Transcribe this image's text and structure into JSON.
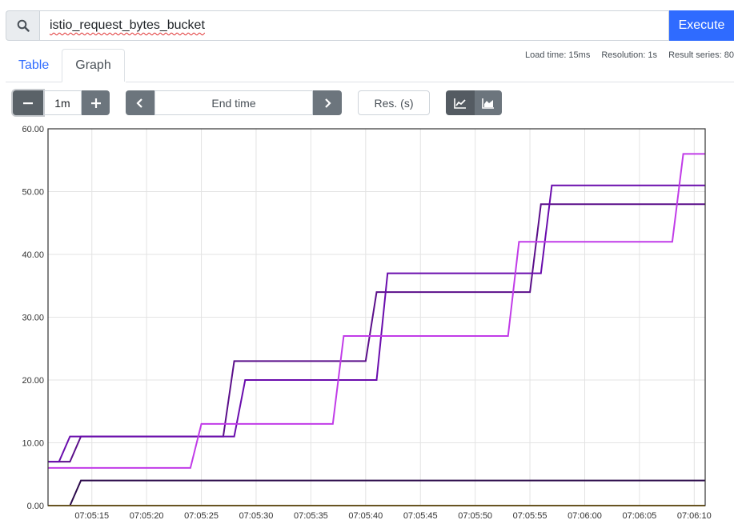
{
  "query": {
    "value": "istio_request_bytes_bucket",
    "search_icon": "search-icon",
    "execute_label": "Execute"
  },
  "tabs": [
    {
      "label": "Table",
      "active": false
    },
    {
      "label": "Graph",
      "active": true
    }
  ],
  "stats": {
    "load_time": "Load time: 15ms",
    "resolution": "Resolution: 1s",
    "result_series": "Result series: 80"
  },
  "controls": {
    "range_value": "1m",
    "end_time_label": "End time",
    "resolution_placeholder": "Res. (s)",
    "icons": {
      "decrease": "minus-icon",
      "increase": "plus-icon",
      "prev": "chevron-left-icon",
      "next": "chevron-right-icon",
      "line_mode": "line-chart-icon",
      "stacked_mode": "area-chart-icon"
    }
  },
  "chart_data": {
    "type": "line",
    "step": true,
    "ylim": [
      0,
      60
    ],
    "grid": true,
    "y_ticks": [
      "0.00",
      "10.00",
      "20.00",
      "30.00",
      "40.00",
      "50.00",
      "60.00"
    ],
    "x_ticks": [
      "07:05:15",
      "07:05:20",
      "07:05:25",
      "07:05:30",
      "07:05:35",
      "07:05:40",
      "07:05:45",
      "07:05:50",
      "07:05:55",
      "07:06:00",
      "07:06:05",
      "07:06:10"
    ],
    "xlim": [
      "07:05:11",
      "07:06:11"
    ],
    "series": [
      {
        "color": "#5b0f8a",
        "points": [
          [
            "07:05:11",
            7
          ],
          [
            "07:05:13",
            7
          ],
          [
            "07:05:14",
            11
          ],
          [
            "07:05:27",
            11
          ],
          [
            "07:05:28",
            23
          ],
          [
            "07:05:40",
            23
          ],
          [
            "07:05:41",
            34
          ],
          [
            "07:05:55",
            34
          ],
          [
            "07:05:56",
            48
          ],
          [
            "07:06:11",
            48
          ]
        ]
      },
      {
        "color": "#6a0dad",
        "points": [
          [
            "07:05:11",
            7
          ],
          [
            "07:05:12",
            7
          ],
          [
            "07:05:13",
            11
          ],
          [
            "07:05:28",
            11
          ],
          [
            "07:05:29",
            20
          ],
          [
            "07:05:41",
            20
          ],
          [
            "07:05:42",
            37
          ],
          [
            "07:05:56",
            37
          ],
          [
            "07:05:57",
            51
          ],
          [
            "07:06:11",
            51
          ]
        ]
      },
      {
        "color": "#c13ce8",
        "points": [
          [
            "07:05:11",
            6
          ],
          [
            "07:05:24",
            6
          ],
          [
            "07:05:25",
            13
          ],
          [
            "07:05:37",
            13
          ],
          [
            "07:05:38",
            27
          ],
          [
            "07:05:53",
            27
          ],
          [
            "07:05:54",
            42
          ],
          [
            "07:06:08",
            42
          ],
          [
            "07:06:09",
            56
          ],
          [
            "07:06:11",
            56
          ]
        ]
      },
      {
        "color": "#2b0a4a",
        "points": [
          [
            "07:05:11",
            0
          ],
          [
            "07:05:13",
            0
          ],
          [
            "07:05:14",
            4
          ],
          [
            "07:06:11",
            4
          ]
        ]
      },
      {
        "color": "#b8860b",
        "points": [
          [
            "07:05:11",
            0
          ],
          [
            "07:06:11",
            0
          ]
        ]
      }
    ]
  }
}
